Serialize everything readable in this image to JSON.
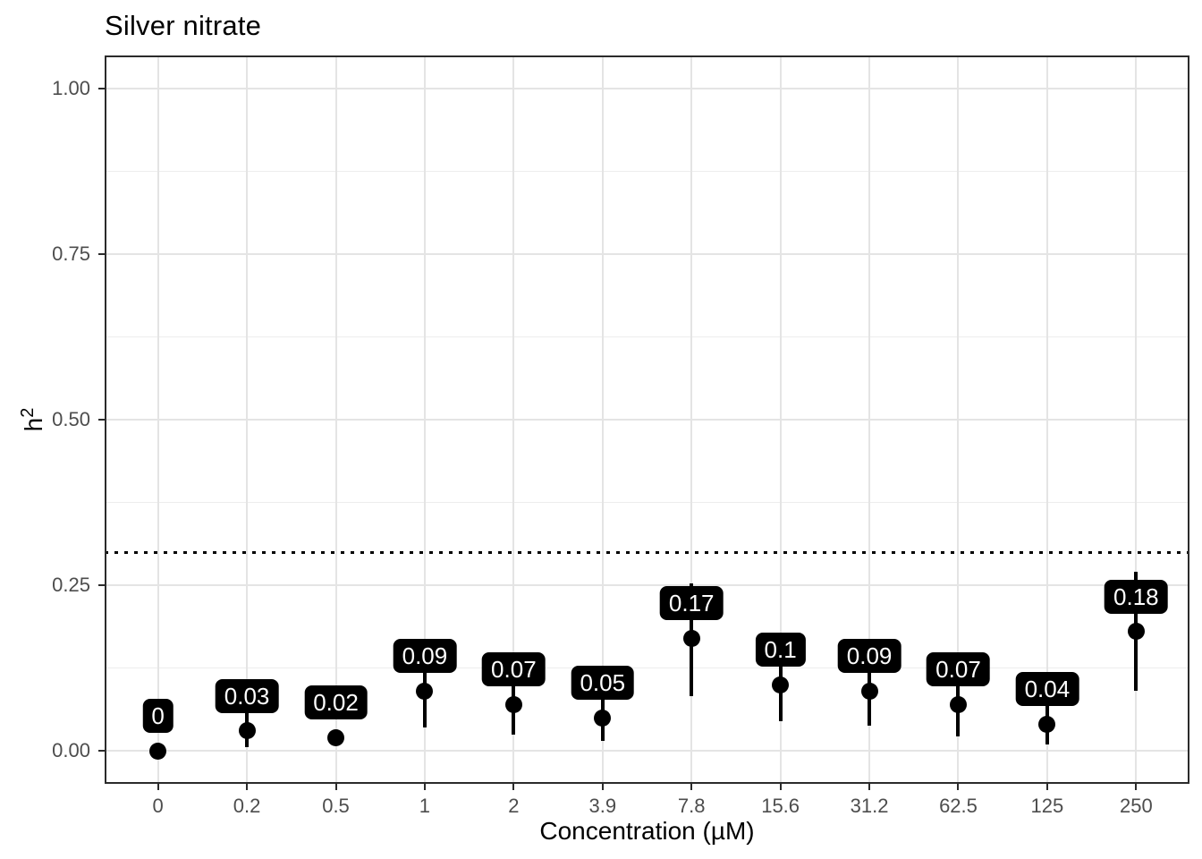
{
  "title": "Silver nitrate",
  "colors": {
    "point": "#000000",
    "error_bar": "#000000",
    "label_bg": "#000000",
    "label_text": "#ffffff",
    "grid_major": "#e4e4e4",
    "grid_minor": "#ededed",
    "panel_border": "#2b2b2b",
    "axis_text": "#4d4d4d",
    "title_text": "#000000",
    "background": "#ffffff",
    "reference_line": "#000000"
  },
  "chart_data": {
    "type": "scatter",
    "title": "Silver nitrate",
    "xlabel": "Concentration (µM)",
    "ylabel": "h²",
    "ylabel_base": "h",
    "ylabel_sup": "2",
    "categories": [
      "0",
      "0.2",
      "0.5",
      "1",
      "2",
      "3.9",
      "7.8",
      "15.6",
      "31.2",
      "62.5",
      "125",
      "250"
    ],
    "values": [
      0,
      0.03,
      0.02,
      0.09,
      0.07,
      0.05,
      0.17,
      0.1,
      0.09,
      0.07,
      0.04,
      0.18
    ],
    "point_labels": [
      "0",
      "0.03",
      "0.02",
      "0.09",
      "0.07",
      "0.05",
      "0.17",
      "0.1",
      "0.09",
      "0.07",
      "0.04",
      "0.18"
    ],
    "error_low": [
      0,
      0.005,
      0.02,
      0.035,
      0.024,
      0.015,
      0.083,
      0.045,
      0.038,
      0.022,
      0.009,
      0.09
    ],
    "error_high": [
      0,
      0.06,
      0.02,
      0.145,
      0.12,
      0.095,
      0.253,
      0.157,
      0.15,
      0.112,
      0.068,
      0.27
    ],
    "reference_line_y": 0.3,
    "reference_line_style": "dotted",
    "y_tick_labels": [
      "0.00",
      "0.25",
      "0.50",
      "0.75",
      "1.00"
    ],
    "y_tick_values": [
      0,
      0.25,
      0.5,
      0.75,
      1.0
    ],
    "y_minor_values": [
      0.125,
      0.375,
      0.625,
      0.875
    ],
    "ylim": [
      -0.05,
      1.05
    ],
    "grid": true,
    "legend": "none"
  }
}
